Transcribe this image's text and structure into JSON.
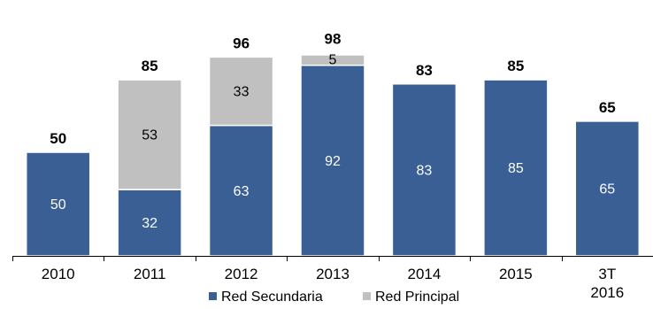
{
  "chart_data": {
    "type": "bar",
    "stacked": true,
    "categories": [
      "2010",
      "2011",
      "2012",
      "2013",
      "2014",
      "2015",
      "3T 2016"
    ],
    "series": [
      {
        "name": "Red Secundaria",
        "values": [
          50,
          32,
          63,
          92,
          83,
          85,
          65
        ],
        "color": "#3a5f94",
        "label_color": "#ffffff"
      },
      {
        "name": "Red Principal",
        "values": [
          0,
          53,
          33,
          5,
          0,
          0,
          0
        ],
        "color": "#c0c0c0",
        "label_color": "#000000"
      }
    ],
    "totals": [
      50,
      85,
      96,
      98,
      83,
      85,
      65
    ],
    "ylim": [
      0,
      100
    ],
    "grid": false,
    "legend_position": "bottom",
    "title": "",
    "xlabel": "",
    "ylabel": ""
  }
}
